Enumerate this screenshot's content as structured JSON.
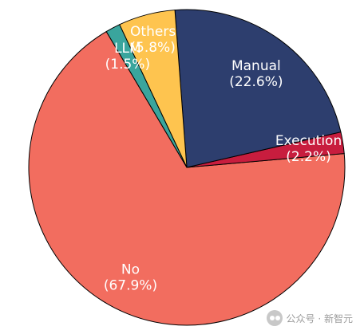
{
  "chart_data": {
    "type": "pie",
    "title": "",
    "labels": [
      "No",
      "Execution",
      "Manual",
      "Others",
      "LLM"
    ],
    "values": [
      67.9,
      2.2,
      22.6,
      5.8,
      1.5
    ],
    "value_labels": [
      "(67.9%)",
      "(2.2%)",
      "(22.6%)",
      "(5.8%)",
      "(1.5%)"
    ],
    "colors": [
      "#f26d5f",
      "#c81d3e",
      "#2d3e6e",
      "#fec44f",
      "#3aa59d"
    ],
    "label_colors": [
      "#ffffff",
      "#ffffff",
      "#ffffff",
      "#ffffff",
      "#ffffff"
    ],
    "legend": "none"
  },
  "watermark": {
    "text": "公众号 · 新智元",
    "icon": "wechat-icon"
  }
}
